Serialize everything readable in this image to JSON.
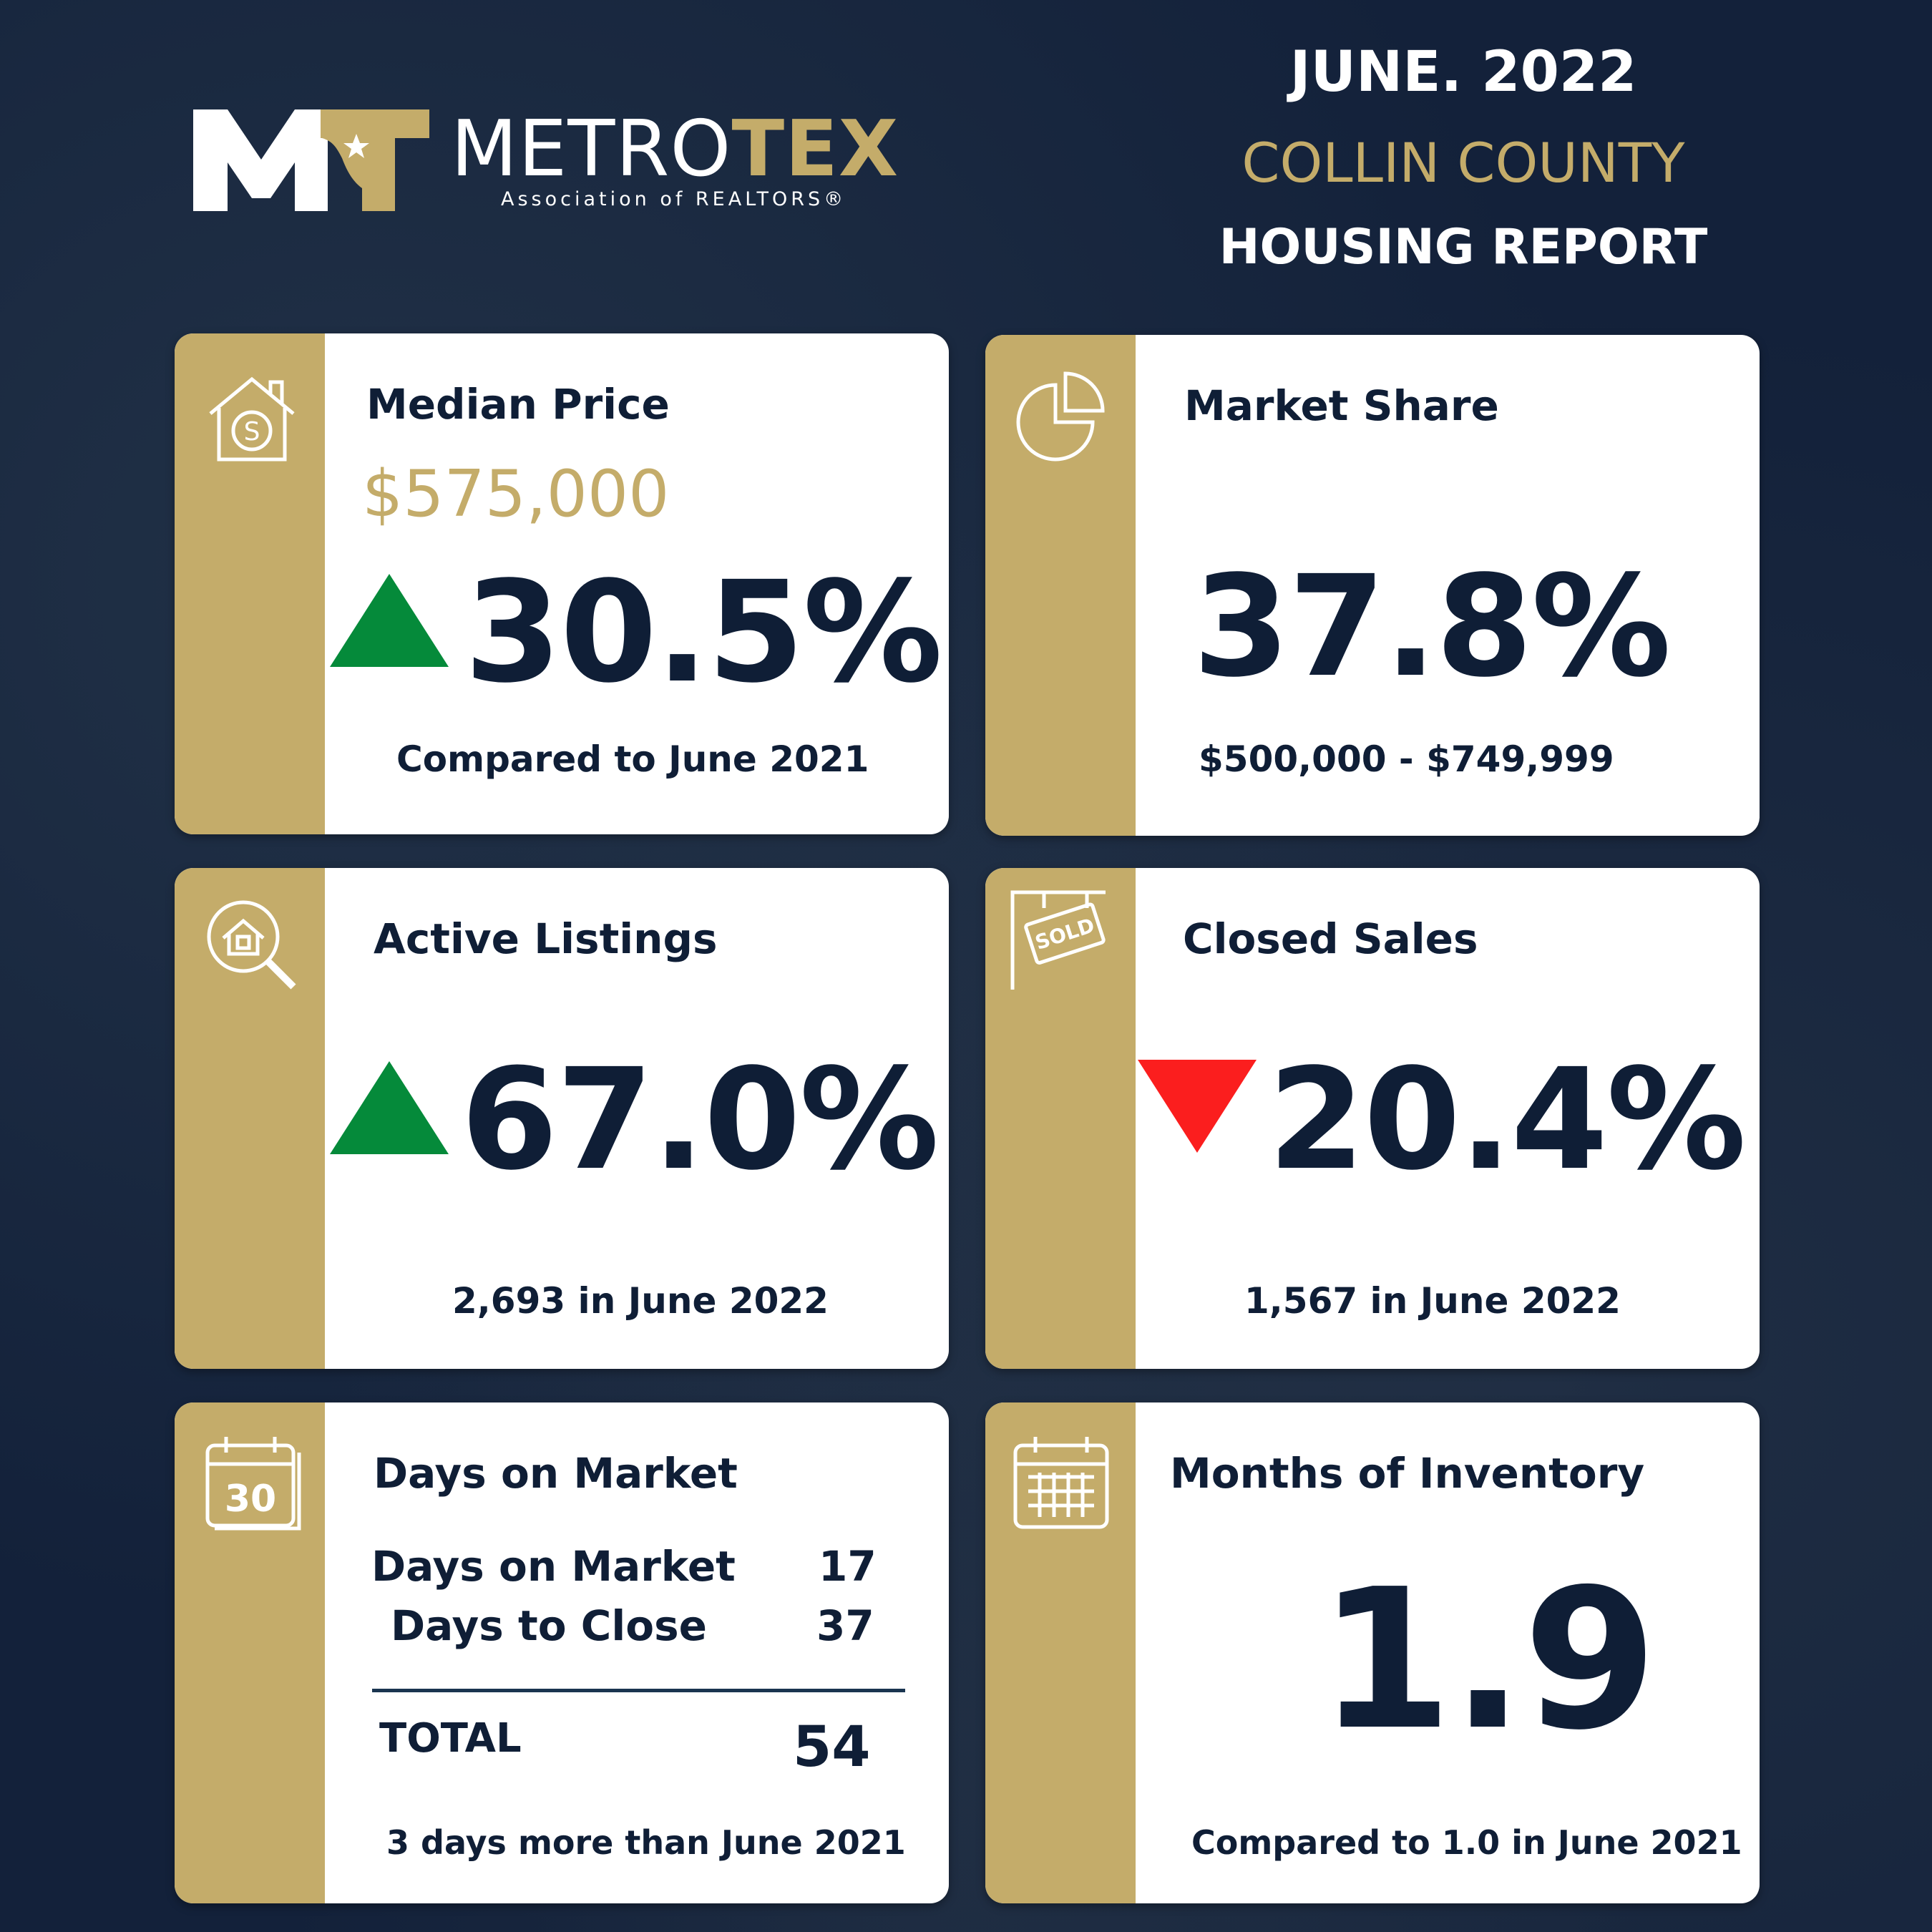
{
  "logo": {
    "mark": "MT",
    "name_light": "METRO",
    "name_bold": "TEX",
    "subtitle": "Association of REALTORS®"
  },
  "header": {
    "month": "JUNE. 2022",
    "county": "COLLIN COUNTY",
    "report": "HOUSING REPORT"
  },
  "colors": {
    "navy": "#0f1e36",
    "gold": "#c4ac6a",
    "up_green": "#058a3a",
    "down_red": "#fb1e1e",
    "background": "#13213a"
  },
  "cards": {
    "median_price": {
      "icon": "house-dollar-icon",
      "title": "Median Price",
      "price": "$575,000",
      "trend": "up",
      "change": "30.5%",
      "note": "Compared to June 2021"
    },
    "market_share": {
      "icon": "pie-chart-icon",
      "title": "Market Share",
      "value": "37.8%",
      "note": "$500,000 - $749,999"
    },
    "active_listings": {
      "icon": "house-search-icon",
      "title": "Active Listings",
      "trend": "up",
      "change": "67.0%",
      "note": "2,693 in June 2022"
    },
    "closed_sales": {
      "icon": "sold-sign-icon",
      "title": "Closed Sales",
      "trend": "down",
      "change": "20.4%",
      "note": "1,567 in June 2022"
    },
    "days_on_market": {
      "icon": "calendar-30-icon",
      "icon_text": "30",
      "title": "Days on Market",
      "rows": [
        {
          "label": "Days on Market",
          "value": "17"
        },
        {
          "label": "Days to Close",
          "value": "37"
        }
      ],
      "total_label": "TOTAL",
      "total_value": "54",
      "note": "3 days more than June 2021"
    },
    "months_inventory": {
      "icon": "calendar-grid-icon",
      "title": "Months of Inventory",
      "value": "1.9",
      "note": "Compared to 1.0 in June 2021"
    }
  }
}
